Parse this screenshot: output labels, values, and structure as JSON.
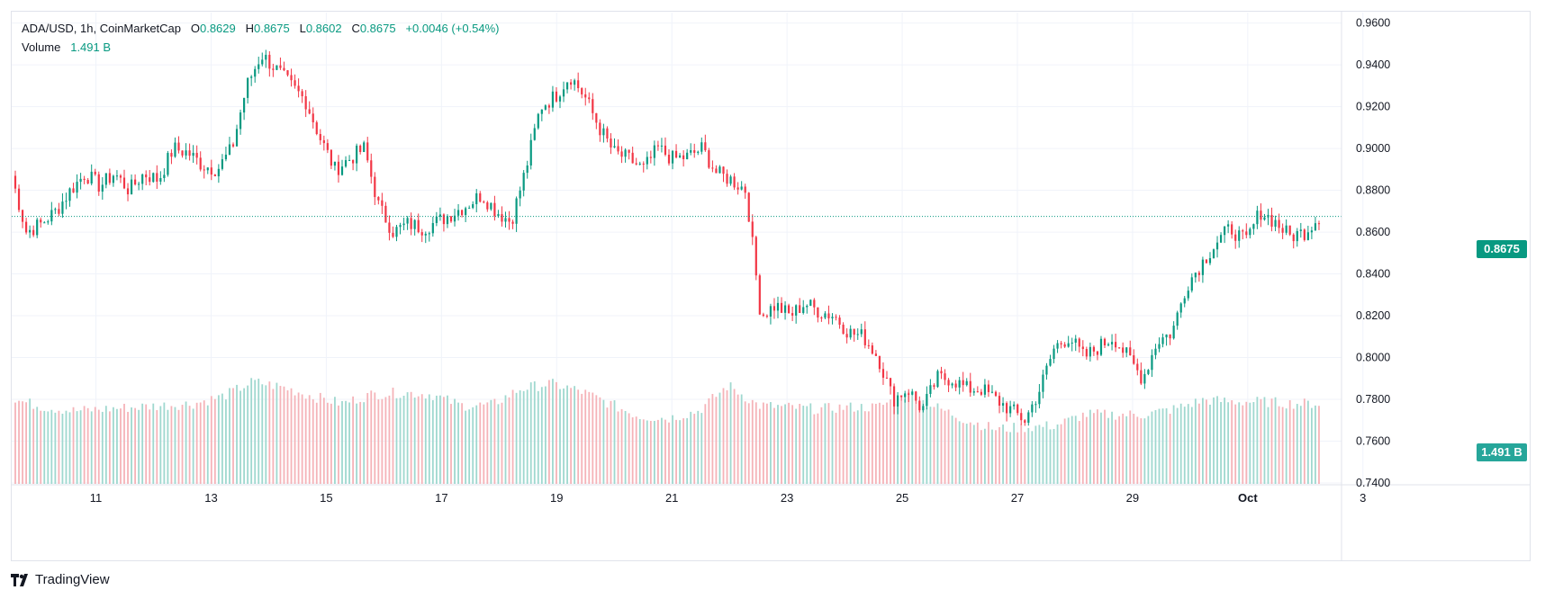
{
  "legend": {
    "symbol": "ADA/USD, 1h, CoinMarketCap",
    "o_label": "O",
    "o_value": "0.8629",
    "h_label": "H",
    "h_value": "0.8675",
    "l_label": "L",
    "l_value": "0.8602",
    "c_label": "C",
    "c_value": "0.8675",
    "change": "+0.0046 (+0.54%)",
    "volume_label": "Volume",
    "volume_value": "1.491 B"
  },
  "badges": {
    "price": "0.8675",
    "volume": "1.491 B"
  },
  "branding": {
    "name": "TradingView"
  },
  "colors": {
    "up": "#089981",
    "down": "#f23645",
    "vol_up": "#9fd8cf",
    "vol_down": "#f5b3b8",
    "grid": "#f0f3fa"
  },
  "chart_data": {
    "type": "candlestick",
    "title": "ADA/USD, 1h, CoinMarketCap",
    "ylim": [
      0.74,
      0.965
    ],
    "y_ticks": [
      "0.9600",
      "0.9400",
      "0.9200",
      "0.9000",
      "0.8800",
      "0.8600",
      "0.8400",
      "0.8200",
      "0.8000",
      "0.7800",
      "0.7600",
      "0.7400"
    ],
    "x_ticks": [
      "11",
      "13",
      "15",
      "17",
      "19",
      "21",
      "23",
      "25",
      "27",
      "29",
      "Oct",
      "3"
    ],
    "last_price": 0.8675,
    "price_path": [
      [
        0,
        0.887
      ],
      [
        0.5,
        0.86
      ],
      [
        1,
        0.864
      ],
      [
        1.5,
        0.87
      ],
      [
        2,
        0.88
      ],
      [
        2.5,
        0.888
      ],
      [
        3,
        0.882
      ],
      [
        3.5,
        0.888
      ],
      [
        4,
        0.88
      ],
      [
        4.5,
        0.888
      ],
      [
        5,
        0.885
      ],
      [
        5.5,
        0.9
      ],
      [
        6,
        0.898
      ],
      [
        6.5,
        0.892
      ],
      [
        7,
        0.89
      ],
      [
        7.5,
        0.9
      ],
      [
        8,
        0.93
      ],
      [
        8.5,
        0.945
      ],
      [
        9,
        0.938
      ],
      [
        9.5,
        0.93
      ],
      [
        10,
        0.923
      ],
      [
        10.5,
        0.905
      ],
      [
        11,
        0.89
      ],
      [
        11.5,
        0.895
      ],
      [
        12,
        0.9
      ],
      [
        12.5,
        0.872
      ],
      [
        13,
        0.86
      ],
      [
        13.5,
        0.864
      ],
      [
        14,
        0.862
      ],
      [
        14.5,
        0.865
      ],
      [
        15,
        0.869
      ],
      [
        15.5,
        0.873
      ],
      [
        16,
        0.878
      ],
      [
        16.5,
        0.87
      ],
      [
        17,
        0.865
      ],
      [
        17.5,
        0.89
      ],
      [
        18,
        0.92
      ],
      [
        18.5,
        0.925
      ],
      [
        19,
        0.935
      ],
      [
        19.5,
        0.925
      ],
      [
        20,
        0.91
      ],
      [
        20.5,
        0.898
      ],
      [
        21,
        0.895
      ],
      [
        21.5,
        0.89
      ],
      [
        22,
        0.9
      ],
      [
        22.5,
        0.895
      ],
      [
        23,
        0.896
      ],
      [
        23.5,
        0.9
      ],
      [
        24,
        0.888
      ],
      [
        24.5,
        0.885
      ],
      [
        25,
        0.88
      ],
      [
        25.5,
        0.82
      ],
      [
        26,
        0.825
      ],
      [
        26.5,
        0.82
      ],
      [
        27,
        0.826
      ],
      [
        27.5,
        0.822
      ],
      [
        28,
        0.82
      ],
      [
        28.5,
        0.812
      ],
      [
        29,
        0.81
      ],
      [
        29.5,
        0.8
      ],
      [
        30,
        0.78
      ],
      [
        30.5,
        0.785
      ],
      [
        31,
        0.775
      ],
      [
        31.5,
        0.79
      ],
      [
        32,
        0.79
      ],
      [
        32.5,
        0.785
      ],
      [
        33,
        0.785
      ],
      [
        33.5,
        0.78
      ],
      [
        34,
        0.775
      ],
      [
        34.5,
        0.77
      ],
      [
        35,
        0.785
      ],
      [
        35.5,
        0.805
      ],
      [
        36,
        0.81
      ],
      [
        36.5,
        0.8
      ],
      [
        37,
        0.805
      ],
      [
        37.5,
        0.81
      ],
      [
        38,
        0.8
      ],
      [
        38.5,
        0.79
      ],
      [
        39,
        0.808
      ],
      [
        39.5,
        0.812
      ],
      [
        40,
        0.835
      ],
      [
        40.5,
        0.845
      ],
      [
        41,
        0.855
      ],
      [
        41.5,
        0.862
      ],
      [
        42,
        0.855
      ],
      [
        42.5,
        0.87
      ],
      [
        43,
        0.865
      ],
      [
        43.5,
        0.858
      ],
      [
        44,
        0.86
      ],
      [
        44.5,
        0.8675
      ]
    ],
    "volume_path": [
      [
        0,
        0.46
      ],
      [
        1,
        0.42
      ],
      [
        2,
        0.4
      ],
      [
        3,
        0.41
      ],
      [
        4,
        0.42
      ],
      [
        5,
        0.43
      ],
      [
        6,
        0.44
      ],
      [
        7,
        0.48
      ],
      [
        8,
        0.56
      ],
      [
        9,
        0.53
      ],
      [
        10,
        0.48
      ],
      [
        11,
        0.44
      ],
      [
        12,
        0.49
      ],
      [
        13,
        0.5
      ],
      [
        14,
        0.49
      ],
      [
        15,
        0.43
      ],
      [
        16,
        0.43
      ],
      [
        17,
        0.52
      ],
      [
        18,
        0.55
      ],
      [
        19,
        0.51
      ],
      [
        20,
        0.44
      ],
      [
        21,
        0.37
      ],
      [
        22,
        0.36
      ],
      [
        23,
        0.4
      ],
      [
        24,
        0.54
      ],
      [
        25,
        0.43
      ],
      [
        26,
        0.42
      ],
      [
        27,
        0.41
      ],
      [
        28,
        0.42
      ],
      [
        29,
        0.42
      ],
      [
        30,
        0.49
      ],
      [
        31,
        0.42
      ],
      [
        32,
        0.35
      ],
      [
        33,
        0.3
      ],
      [
        34,
        0.31
      ],
      [
        35,
        0.32
      ],
      [
        36,
        0.38
      ],
      [
        37,
        0.38
      ],
      [
        38,
        0.38
      ],
      [
        39,
        0.41
      ],
      [
        40,
        0.46
      ],
      [
        41,
        0.45
      ],
      [
        42,
        0.45
      ],
      [
        43,
        0.44
      ],
      [
        44,
        0.44
      ]
    ]
  }
}
